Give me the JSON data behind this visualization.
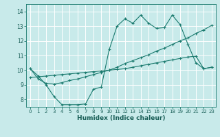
{
  "title": "",
  "xlabel": "Humidex (Indice chaleur)",
  "background_color": "#c8eaea",
  "grid_color": "#b0d8d8",
  "line_color": "#1a7a6e",
  "xlim": [
    -0.5,
    23.5
  ],
  "ylim": [
    7.5,
    14.5
  ],
  "xticks": [
    0,
    1,
    2,
    3,
    4,
    5,
    6,
    7,
    8,
    9,
    10,
    11,
    12,
    13,
    14,
    15,
    16,
    17,
    18,
    19,
    20,
    21,
    22,
    23
  ],
  "yticks": [
    8,
    9,
    10,
    11,
    12,
    13,
    14
  ],
  "series": [
    [
      10.1,
      9.6,
      9.0,
      8.2,
      7.65,
      7.65,
      7.65,
      7.7,
      8.7,
      8.85,
      11.4,
      13.0,
      13.5,
      13.2,
      13.75,
      13.2,
      12.85,
      12.9,
      13.75,
      13.1,
      11.75,
      10.5,
      10.1,
      10.2
    ],
    [
      10.1,
      9.4,
      9.1,
      9.05,
      9.15,
      9.3,
      9.4,
      9.55,
      9.7,
      9.85,
      10.0,
      10.2,
      10.45,
      10.65,
      10.85,
      11.05,
      11.3,
      11.5,
      11.75,
      12.0,
      12.2,
      12.5,
      12.75,
      13.05
    ],
    [
      9.5,
      9.55,
      9.6,
      9.65,
      9.7,
      9.75,
      9.8,
      9.85,
      9.9,
      9.95,
      10.0,
      10.05,
      10.1,
      10.2,
      10.3,
      10.4,
      10.5,
      10.6,
      10.7,
      10.8,
      10.9,
      10.95,
      10.1,
      10.2
    ]
  ]
}
